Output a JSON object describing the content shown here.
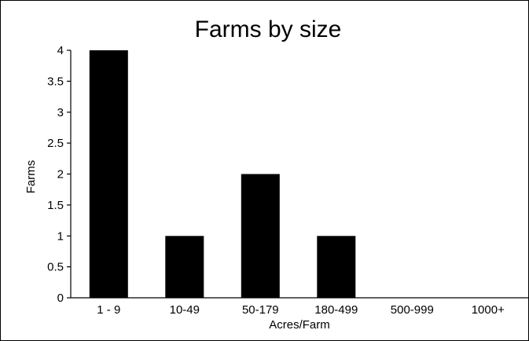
{
  "chart_data": {
    "type": "bar",
    "title": "Farms by size",
    "xlabel": "Acres/Farm",
    "ylabel": "Farms",
    "categories": [
      "1 - 9",
      "10-49",
      "50-179",
      "180-499",
      "500-999",
      "1000+"
    ],
    "values": [
      4,
      1,
      2,
      1,
      0,
      0
    ],
    "ylim": [
      0,
      4
    ],
    "yticks": [
      "0",
      "0.5",
      "1",
      "1.5",
      "2",
      "2.5",
      "3",
      "3.5",
      "4"
    ],
    "grid": false,
    "legend": "none",
    "bar_color": "#000000"
  }
}
